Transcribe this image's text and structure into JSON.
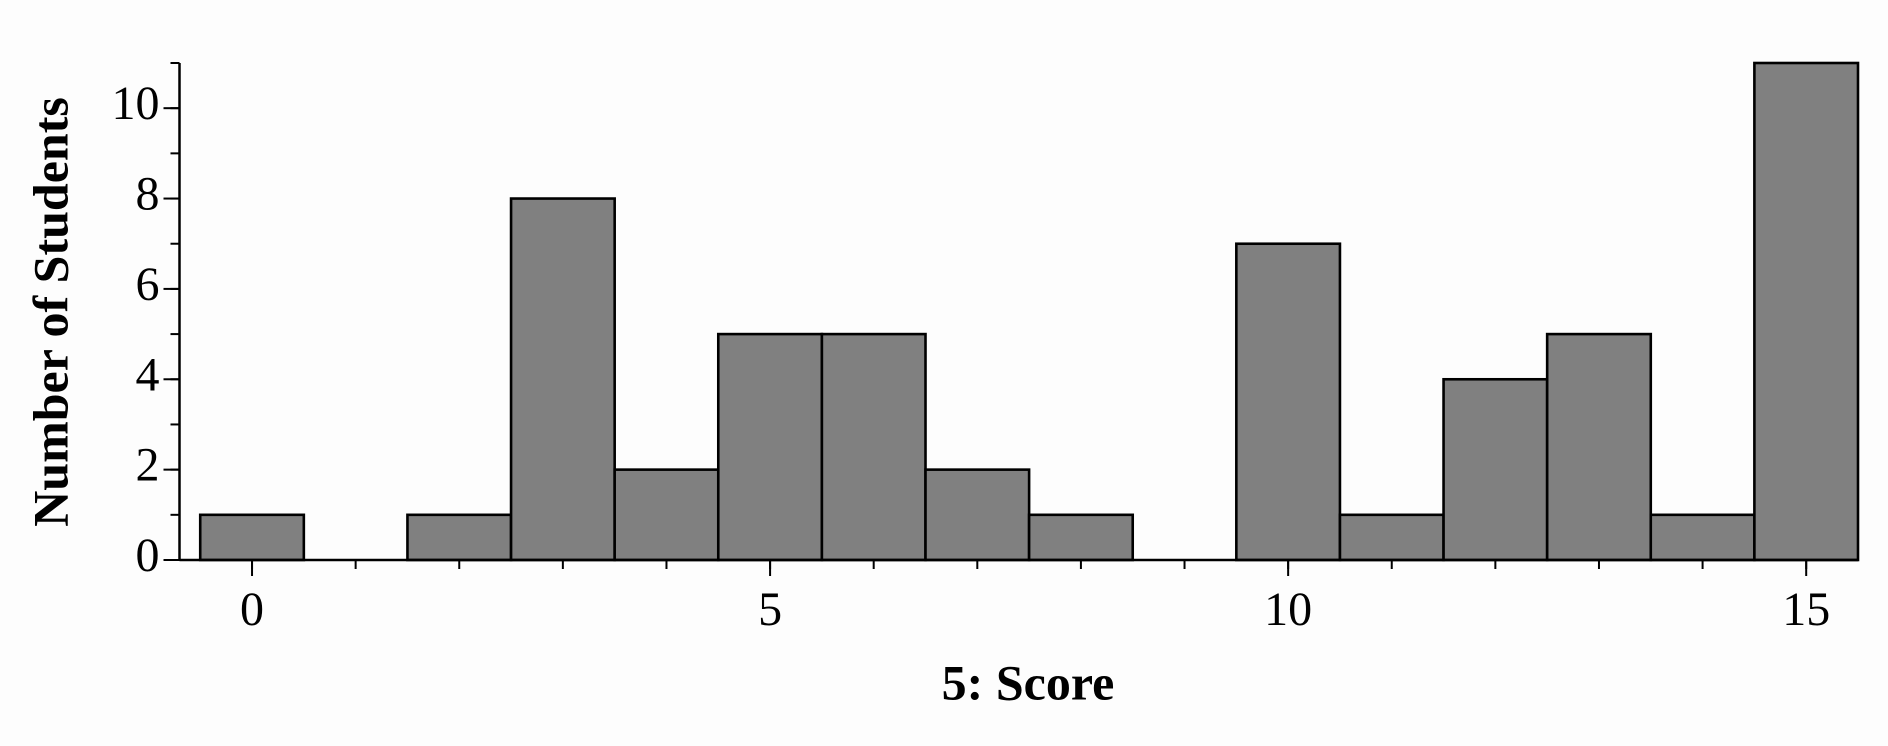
{
  "chart_data": {
    "type": "histogram",
    "xlabel": "5: Score",
    "ylabel": "Number of Students",
    "bins": [
      -0.5,
      0.5,
      1.5,
      2.5,
      3.5,
      4.5,
      5.5,
      6.5,
      7.5,
      8.5,
      9.5,
      10.5,
      11.5,
      12.5,
      13.5,
      14.5,
      15.5
    ],
    "counts": [
      1,
      0,
      1,
      8,
      2,
      5,
      5,
      2,
      1,
      0,
      7,
      1,
      4,
      5,
      1,
      11
    ],
    "color": "#808080",
    "xlim": [
      -0.7,
      15.5
    ],
    "xticks": [
      0,
      5,
      10,
      15
    ],
    "ylim": [
      0,
      11
    ],
    "yticks": [
      0,
      2,
      4,
      6,
      8,
      10
    ]
  }
}
